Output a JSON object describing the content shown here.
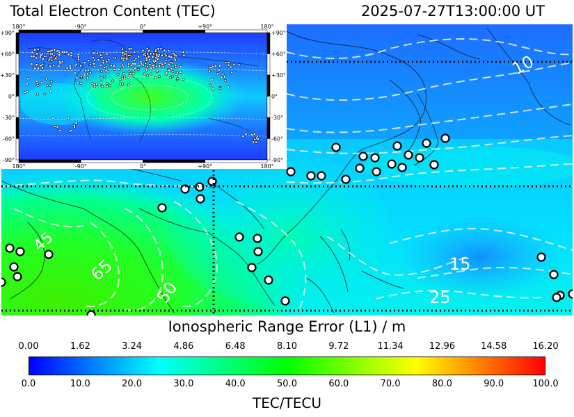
{
  "header": {
    "title": "Total Electron Content (TEC)",
    "timestamp": "2025-07-27T13:00:00 UT"
  },
  "inset": {
    "top_lon_labels": [
      "180°",
      "-90°",
      "0°",
      "+90°",
      "180°"
    ],
    "bottom_lon_labels": [
      "180°",
      "-90°",
      "0°",
      "+90°",
      "180°"
    ],
    "left_lat_labels": [
      "+90°",
      "+60°",
      "+30°",
      "0°",
      "-30°",
      "-60°",
      "-90°"
    ],
    "right_lat_labels": [
      "+90°",
      "+60°",
      "+30°",
      "0°",
      "-30°",
      "-60°",
      "-90°"
    ]
  },
  "map": {
    "contour_labels": [
      "10",
      "45",
      "65",
      "50",
      "15",
      "25"
    ]
  },
  "colorbar": {
    "range_title": "Ionospheric Range Error (L1) / m",
    "range_ticks": [
      "0.00",
      "1.62",
      "3.24",
      "4.86",
      "6.48",
      "8.10",
      "9.72",
      "11.34",
      "12.96",
      "14.58",
      "16.20"
    ],
    "tec_ticks": [
      "0.0",
      "10.0",
      "20.0",
      "30.0",
      "40.0",
      "50.0",
      "60.0",
      "70.0",
      "80.0",
      "90.0",
      "100.0"
    ],
    "unit_label": "TEC/TECU",
    "stops": [
      "#0000ff",
      "#0080ff",
      "#00ffff",
      "#00ff80",
      "#00ff00",
      "#80ff00",
      "#ffff00",
      "#ff8000",
      "#ff0000"
    ]
  }
}
